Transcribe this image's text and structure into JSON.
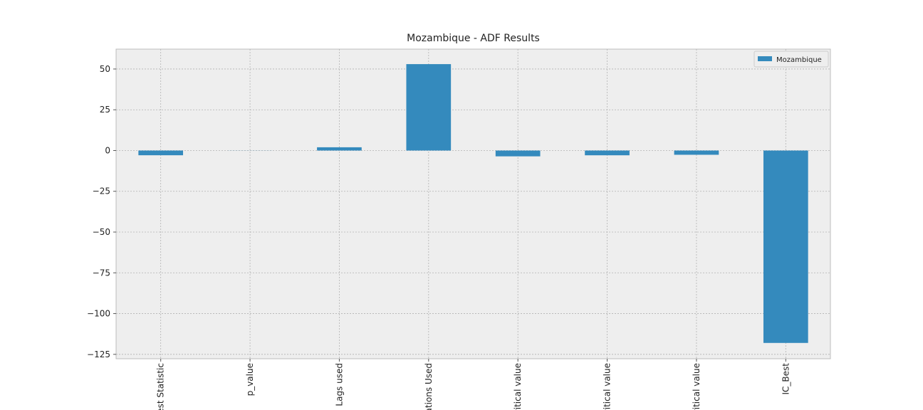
{
  "chart_data": {
    "type": "bar",
    "title": "Mozambique - ADF Results",
    "categories": [
      "est Statistic",
      "p_value",
      "Lags used",
      "ations Used",
      "ritical value",
      "ritical value",
      "ritical value",
      "IC_Best"
    ],
    "series": [
      {
        "name": "Mozambique",
        "color": "#348abd",
        "values": [
          -2.9,
          0.05,
          2,
          53,
          -3.56,
          -2.92,
          -2.6,
          -118
        ]
      }
    ],
    "ylim": [
      -127.7,
      62.2
    ],
    "yticks": [
      {
        "value": -125,
        "label": "−125"
      },
      {
        "value": -100,
        "label": "−100"
      },
      {
        "value": -75,
        "label": "−75"
      },
      {
        "value": -50,
        "label": "−50"
      },
      {
        "value": -25,
        "label": "−25"
      },
      0,
      25,
      50
    ],
    "grid": true,
    "legend": "upper right"
  }
}
